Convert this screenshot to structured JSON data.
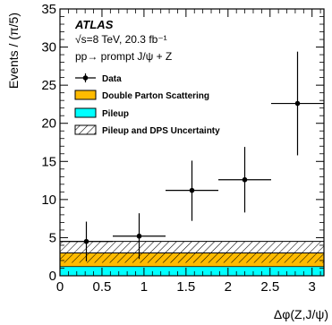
{
  "chart_data": {
    "type": "scatter",
    "experiment_label": "ATLAS",
    "info_lines": [
      "√s=8 TeV, 20.3 fb⁻¹",
      "pp→ prompt J/ψ + Z"
    ],
    "xlabel": "Δφ(Z,J/ψ)",
    "ylabel": "Events / (π/5)",
    "xlim": [
      0,
      3.1416
    ],
    "ylim": [
      0,
      35
    ],
    "x_ticks": [
      "0",
      "0.5",
      "1",
      "1.5",
      "2",
      "2.5",
      "3"
    ],
    "y_ticks": [
      "0",
      "5",
      "10",
      "15",
      "20",
      "25",
      "30",
      "35"
    ],
    "legend": [
      {
        "label": "Data",
        "style": "marker"
      },
      {
        "label": "Double Parton Scattering",
        "style": "fill",
        "color": "#FFBB00"
      },
      {
        "label": "Pileup",
        "style": "fill",
        "color": "#00FFFF"
      },
      {
        "label": "Pileup and DPS Uncertainty",
        "style": "hatch"
      }
    ],
    "bin_edges": [
      0,
      0.6283,
      1.2566,
      1.885,
      2.5133,
      3.1416
    ],
    "data": [
      {
        "x": 0.3142,
        "y": 4.5,
        "err_low": 2.6,
        "err_high": 2.6
      },
      {
        "x": 0.9425,
        "y": 5.2,
        "err_low": 3.0,
        "err_high": 3.0
      },
      {
        "x": 1.5708,
        "y": 11.2,
        "err_low": 4.0,
        "err_high": 3.9
      },
      {
        "x": 2.1991,
        "y": 12.6,
        "err_low": 4.3,
        "err_high": 4.3
      },
      {
        "x": 2.8274,
        "y": 22.6,
        "err_low": 6.8,
        "err_high": 6.8
      }
    ],
    "pileup": 1.2,
    "dps": 3.0,
    "uncertainty_band": [
      1.7,
      4.5
    ],
    "colors": {
      "dps": "#FFBB00",
      "pileup": "#00FFFF",
      "axis": "#000000"
    }
  }
}
